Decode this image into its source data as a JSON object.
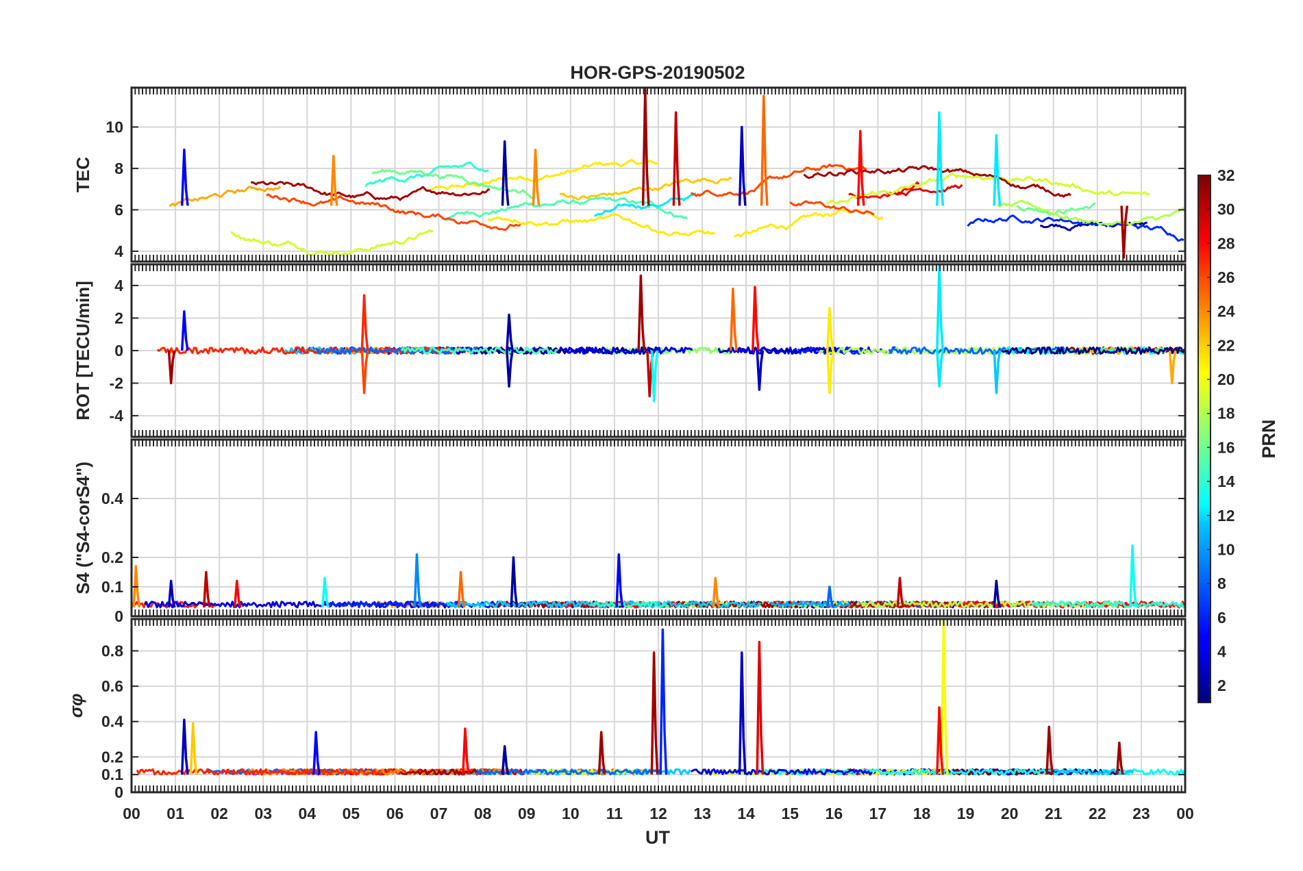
{
  "chart_data": {
    "type": "line",
    "title": "HOR-GPS-20190502",
    "xlabel": "UT",
    "x_ticks": [
      "00",
      "01",
      "02",
      "03",
      "04",
      "05",
      "06",
      "07",
      "08",
      "09",
      "10",
      "11",
      "12",
      "13",
      "14",
      "15",
      "16",
      "17",
      "18",
      "19",
      "20",
      "21",
      "22",
      "23",
      "00"
    ],
    "xlim": [
      0,
      24
    ],
    "grid": true,
    "panels": [
      {
        "id": "tec",
        "ylabel": "TEC",
        "ylim": [
          3.5,
          11.9
        ],
        "y_ticks": [
          "4",
          "6",
          "8",
          "10"
        ],
        "y_tick_values": [
          4,
          6,
          8,
          10
        ],
        "baseline": 6.2,
        "amplitude": 1.2,
        "events": [
          {
            "t": 1.2,
            "height": 8.9,
            "prn": 5
          },
          {
            "t": 4.6,
            "height": 8.6,
            "prn": 24
          },
          {
            "t": 8.5,
            "height": 9.3,
            "prn": 2
          },
          {
            "t": 9.2,
            "height": 8.9,
            "prn": 24
          },
          {
            "t": 11.7,
            "height": 11.8,
            "prn": 31
          },
          {
            "t": 12.4,
            "height": 10.7,
            "prn": 30
          },
          {
            "t": 13.9,
            "height": 10.0,
            "prn": 3
          },
          {
            "t": 14.4,
            "height": 11.5,
            "prn": 25
          },
          {
            "t": 16.6,
            "height": 9.8,
            "prn": 28
          },
          {
            "t": 18.4,
            "height": 10.7,
            "prn": 12
          },
          {
            "t": 19.7,
            "height": 9.6,
            "prn": 12
          },
          {
            "t": 22.6,
            "height": 3.7,
            "prn": 31
          }
        ]
      },
      {
        "id": "rot",
        "ylabel": "ROT [TECU/min]",
        "ylim": [
          -5.3,
          5.3
        ],
        "y_ticks": [
          "-4",
          "-2",
          "0",
          "2",
          "4"
        ],
        "y_tick_values": [
          -4,
          -2,
          0,
          2,
          4
        ],
        "baseline": 0,
        "amplitude": 0.25,
        "events": [
          {
            "t": 0.9,
            "height": -2.0,
            "prn": 31
          },
          {
            "t": 1.2,
            "height": 2.4,
            "prn": 5
          },
          {
            "t": 5.3,
            "height": 3.4,
            "prn": 27
          },
          {
            "t": 5.3,
            "height": -2.6,
            "prn": 26
          },
          {
            "t": 8.6,
            "height": 2.2,
            "prn": 2
          },
          {
            "t": 8.6,
            "height": -2.2,
            "prn": 2
          },
          {
            "t": 11.6,
            "height": 4.6,
            "prn": 31
          },
          {
            "t": 11.8,
            "height": -2.8,
            "prn": 30
          },
          {
            "t": 11.9,
            "height": -3.1,
            "prn": 13
          },
          {
            "t": 13.7,
            "height": 3.8,
            "prn": 25
          },
          {
            "t": 14.2,
            "height": 3.9,
            "prn": 28
          },
          {
            "t": 14.3,
            "height": -2.4,
            "prn": 3
          },
          {
            "t": 15.9,
            "height": 2.6,
            "prn": 21
          },
          {
            "t": 15.9,
            "height": -2.6,
            "prn": 21
          },
          {
            "t": 18.4,
            "height": 5.2,
            "prn": 12
          },
          {
            "t": 18.4,
            "height": -2.2,
            "prn": 12
          },
          {
            "t": 19.7,
            "height": -2.6,
            "prn": 11
          },
          {
            "t": 23.7,
            "height": -2.0,
            "prn": 23
          }
        ]
      },
      {
        "id": "s4",
        "ylabel": "S4 (\"S4-corS4\")",
        "ylim": [
          0,
          0.6
        ],
        "y_ticks": [
          "0",
          "0.1",
          "0.2",
          "0.4"
        ],
        "y_tick_values": [
          0,
          0.1,
          0.2,
          0.4
        ],
        "baseline": 0.03,
        "amplitude": 0.02,
        "events": [
          {
            "t": 0.1,
            "height": 0.17,
            "prn": 24
          },
          {
            "t": 0.9,
            "height": 0.12,
            "prn": 3
          },
          {
            "t": 1.7,
            "height": 0.15,
            "prn": 30
          },
          {
            "t": 2.4,
            "height": 0.12,
            "prn": 28
          },
          {
            "t": 4.4,
            "height": 0.13,
            "prn": 13
          },
          {
            "t": 6.5,
            "height": 0.21,
            "prn": 9
          },
          {
            "t": 7.5,
            "height": 0.15,
            "prn": 25
          },
          {
            "t": 8.7,
            "height": 0.2,
            "prn": 2
          },
          {
            "t": 11.1,
            "height": 0.21,
            "prn": 5
          },
          {
            "t": 13.3,
            "height": 0.13,
            "prn": 24
          },
          {
            "t": 15.9,
            "height": 0.1,
            "prn": 8
          },
          {
            "t": 17.5,
            "height": 0.13,
            "prn": 30
          },
          {
            "t": 19.7,
            "height": 0.12,
            "prn": 2
          },
          {
            "t": 22.8,
            "height": 0.24,
            "prn": 13
          }
        ]
      },
      {
        "id": "sigma",
        "ylabel": "σφ",
        "ylim": [
          0,
          0.98
        ],
        "y_ticks": [
          "0",
          "0.1",
          "0.2",
          "0.4",
          "0.6",
          "0.8"
        ],
        "y_tick_values": [
          0,
          0.1,
          0.2,
          0.4,
          0.6,
          0.8
        ],
        "baseline": 0.1,
        "amplitude": 0.03,
        "events": [
          {
            "t": 1.2,
            "height": 0.41,
            "prn": 3
          },
          {
            "t": 1.4,
            "height": 0.39,
            "prn": 22
          },
          {
            "t": 4.2,
            "height": 0.34,
            "prn": 5
          },
          {
            "t": 7.6,
            "height": 0.36,
            "prn": 28
          },
          {
            "t": 8.5,
            "height": 0.26,
            "prn": 2
          },
          {
            "t": 10.7,
            "height": 0.34,
            "prn": 31
          },
          {
            "t": 11.9,
            "height": 0.79,
            "prn": 31
          },
          {
            "t": 12.1,
            "height": 0.92,
            "prn": 6
          },
          {
            "t": 13.9,
            "height": 0.79,
            "prn": 3
          },
          {
            "t": 14.3,
            "height": 0.85,
            "prn": 29
          },
          {
            "t": 18.5,
            "height": 0.98,
            "prn": 20
          },
          {
            "t": 18.4,
            "height": 0.48,
            "prn": 28
          },
          {
            "t": 20.9,
            "height": 0.37,
            "prn": 31
          },
          {
            "t": 22.5,
            "height": 0.28,
            "prn": 31
          }
        ]
      }
    ],
    "colorbar": {
      "label": "PRN",
      "range": [
        1,
        32
      ],
      "ticks": [
        "2",
        "4",
        "6",
        "8",
        "10",
        "12",
        "14",
        "16",
        "18",
        "20",
        "22",
        "24",
        "26",
        "28",
        "30",
        "32"
      ],
      "tick_values": [
        2,
        4,
        6,
        8,
        10,
        12,
        14,
        16,
        18,
        20,
        22,
        24,
        26,
        28,
        30,
        32
      ],
      "colormap": "jet"
    }
  }
}
